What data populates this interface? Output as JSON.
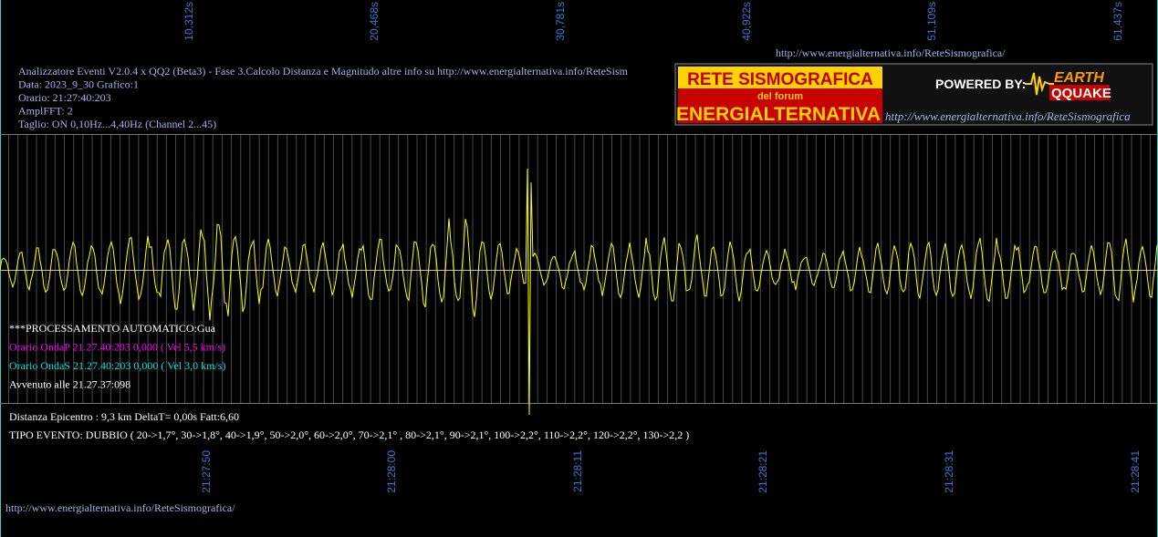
{
  "header": {
    "url": "http://www.energialternativa.info/ReteSismografica/",
    "lines": [
      "Analizzatore Eventi V2.0.4 x QQ2 (Beta3) - Fase 3.Calcolo Distanza e Magnitudo altre info su http://www.energialternativa.info/ReteSism",
      "Data: 2023_9_30 Grafico:1",
      "Orario: 21:27:40:203",
      "AmplFFT: 2",
      "Taglio: ON 0,10Hz...4,40Hz       (Channel 2...45)"
    ]
  },
  "logo": {
    "title": "RETE SISMOGRAFICA",
    "subtitle": "del forum",
    "name": "ENERGIALTERNATIVA",
    "powered": "POWERED BY:",
    "brand_top": "EARTH",
    "brand_bottom": "QQUAKE",
    "url": "http://www.energialternativa.info/ReteSismografica"
  },
  "time_axis_top": [
    "10,312s",
    "20,468s",
    "30,781s",
    "40,922s",
    "51,109s",
    "61,437s"
  ],
  "time_axis_bottom": [
    "21:27:50",
    "21:28:00",
    "21:28:11",
    "21:28:21",
    "21:28:31",
    "21:28:41"
  ],
  "processing": [
    "***PROCESSAMENTO AUTOMATICO:Gua",
    "Orario OndaP 21.27.40:203  0,000 ( Vel 5,5 km/s)",
    "Orario OndaS 21.27.40:203  0,000 ( Vel 3,0 km/s)",
    "Avvenuto alle 21.27.37:098"
  ],
  "result": [
    "Distanza Epicentro : 9,3 km DeltaT= 0,00s  Fatt:6,60",
    "TIPO EVENTO: DUBBIO ( 20->1,7°, 30->1,8°, 40->1,9°, 50->2,0°, 60->2,0°, 70->2,1° , 80->2,1°, 90->2,1°, 100->2,2°, 110->2,2°, 120->2,2°, 130->2,2 )"
  ],
  "footer_url": "http://www.energialternativa.info/ReteSismografica/"
}
